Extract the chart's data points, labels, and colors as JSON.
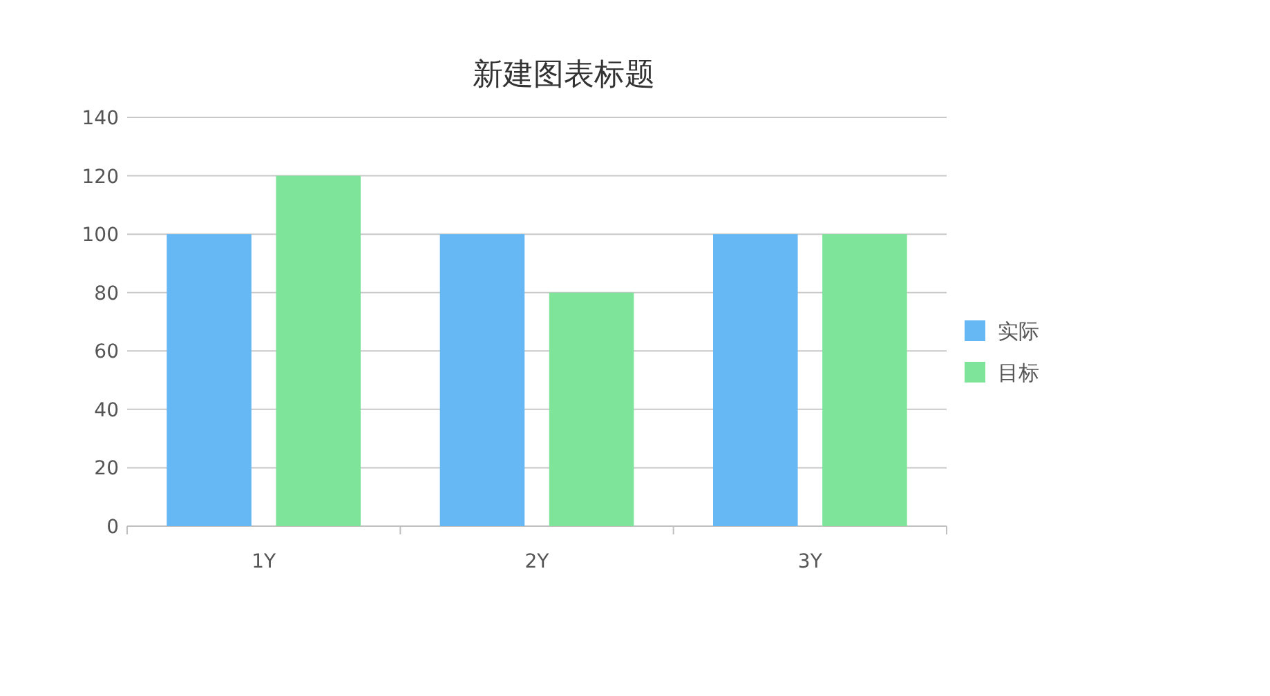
{
  "chart_data": {
    "type": "bar",
    "title": "新建图表标题",
    "categories": [
      "1Y",
      "2Y",
      "3Y"
    ],
    "series": [
      {
        "name": "实际",
        "color": "#66b8f5",
        "values": [
          100,
          100,
          100
        ]
      },
      {
        "name": "目标",
        "color": "#7ee49a",
        "values": [
          120,
          80,
          100
        ]
      }
    ],
    "ylim": [
      0,
      140
    ],
    "yticks": [
      0,
      20,
      40,
      60,
      80,
      100,
      120,
      140
    ],
    "grid": "y",
    "legend": "right"
  }
}
